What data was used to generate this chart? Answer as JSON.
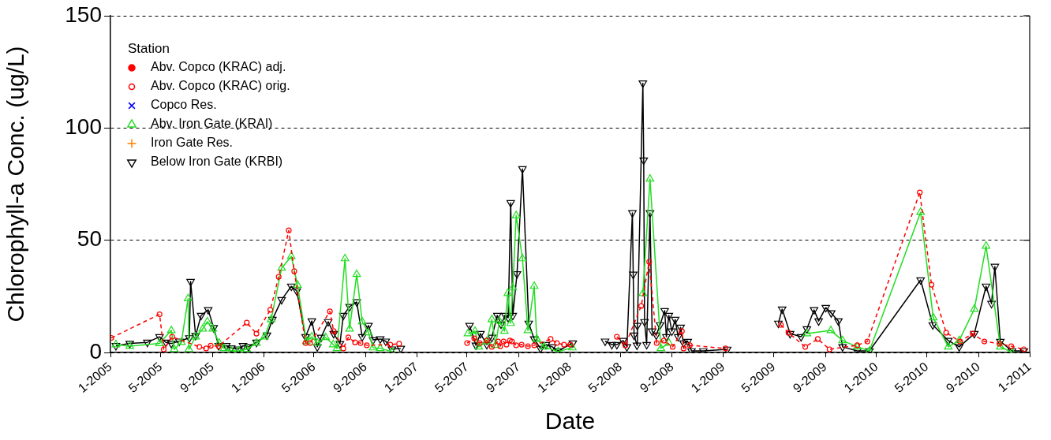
{
  "chart_data": {
    "type": "line",
    "xlabel": "Date",
    "ylabel": "Chlorophyll-a Conc. (ug/L)",
    "legend_title": "Station",
    "legend": "top left",
    "grid": "y",
    "xlim": [
      "2005-01",
      "2011-01"
    ],
    "ylim": [
      0,
      150
    ],
    "yticks": [
      0,
      50,
      100,
      150
    ],
    "xticks": [
      {
        "value": "2005-01",
        "label": "1-2005"
      },
      {
        "value": "2005-05",
        "label": "5-2005"
      },
      {
        "value": "2005-09",
        "label": "9-2005"
      },
      {
        "value": "2006-01",
        "label": "1-2006"
      },
      {
        "value": "2006-05",
        "label": "5-2006"
      },
      {
        "value": "2006-09",
        "label": "9-2006"
      },
      {
        "value": "2007-01",
        "label": "1-2007"
      },
      {
        "value": "2007-05",
        "label": "5-2007"
      },
      {
        "value": "2007-09",
        "label": "9-2007"
      },
      {
        "value": "2008-01",
        "label": "1-2008"
      },
      {
        "value": "2008-05",
        "label": "5-2008"
      },
      {
        "value": "2008-09",
        "label": "9-2008"
      },
      {
        "value": "2009-01",
        "label": "1-2009"
      },
      {
        "value": "2009-05",
        "label": "5-2009"
      },
      {
        "value": "2009-09",
        "label": "9-2009"
      },
      {
        "value": "2010-01",
        "label": "1-2010"
      },
      {
        "value": "2010-05",
        "label": "5-2010"
      },
      {
        "value": "2010-09",
        "label": "9-2010"
      },
      {
        "value": "2011-01",
        "label": "1-2011"
      }
    ],
    "series": [
      {
        "name": "Abv. Copco (KRAC) adj.",
        "color": "#ff0000",
        "marker": "circle"
      },
      {
        "name": "Abv. Copco (KRAC) orig.",
        "color": "#ff0000",
        "marker": "circle_open",
        "line_style": "dashed",
        "x": [
          "2005-01-03",
          "2005-04-28",
          "2005-05-08",
          "2005-05-28",
          "2005-08-01",
          "2005-08-17",
          "2005-08-28",
          "2005-09-16",
          "2005-11-22",
          "2005-12-15",
          "2006-01-17",
          "2006-02-06",
          "2006-03-02",
          "2006-03-15",
          "2006-04-11",
          "2006-04-22",
          "2006-06-08",
          "2006-06-17",
          "2006-07-10",
          "2006-07-22",
          "2006-08-07",
          "2006-08-20",
          "2006-09-04",
          "2006-10-30",
          "2006-11-20",
          "2007-02-15",
          "2007-05-01",
          "2007-05-18",
          "2007-05-31",
          "2007-06-17",
          "2007-06-29",
          "2007-07-14",
          "2007-07-19",
          "2007-07-27",
          "2007-08-03",
          "2007-08-11",
          "2007-08-16",
          "2007-08-26",
          "2007-09-08",
          "2007-09-23",
          "2007-10-08",
          "2007-11-16",
          "2007-12-01",
          "2007-12-18",
          "2008-01-02",
          "2008-02-15",
          "2008-04-22",
          "2008-05-12",
          "2008-06-19",
          "2008-07-08",
          "2008-07-26",
          "2008-08-12",
          "2008-09-02",
          "2008-09-24",
          "2008-09-28",
          "2008-10-13",
          "2009-01-06",
          "2009-03-01",
          "2009-05-18",
          "2009-06-05",
          "2009-07-15",
          "2009-08-14",
          "2009-09-11",
          "2009-11-16",
          "2009-12-10",
          "2010-04-14",
          "2010-05-12",
          "2010-06-16",
          "2010-07-19",
          "2010-08-18",
          "2010-09-15",
          "2010-10-21",
          "2010-11-18",
          "2010-12-18"
        ],
        "values": [
          6.5,
          17,
          1.4,
          7,
          2.5,
          1.8,
          3,
          2.8,
          13.3,
          8.4,
          19,
          33.7,
          54.4,
          36.2,
          4.2,
          4.2,
          18.3,
          9.5,
          1.8,
          6.7,
          4.5,
          4.2,
          3.2,
          3.5,
          3.9,
          null,
          4.2,
          6.3,
          4.2,
          5.3,
          2.5,
          4.9,
          2.8,
          4.9,
          3.5,
          5.3,
          4.9,
          3.2,
          3.5,
          2.8,
          3.2,
          6,
          4.2,
          3.5,
          3.5,
          null,
          7,
          3.2,
          20.7,
          40.4,
          4.2,
          5.3,
          2.5,
          9.5,
          1.8,
          3.2,
          1.8,
          null,
          12.3,
          8.8,
          2.5,
          6,
          1.4,
          3.2,
          4.9,
          71.3,
          30.2,
          8.8,
          4.9,
          8.4,
          4.9,
          3.9,
          2.8,
          1.4
        ]
      },
      {
        "name": "Copco Res.",
        "color": "#0000ff",
        "marker": "cross"
      },
      {
        "name": "Abv. Iron Gate (KRAI)",
        "color": "#22dd22",
        "marker": "triangle",
        "x": [
          "2005-01-14",
          "2005-02-16",
          "2005-04-28",
          "2005-05-26",
          "2005-06-02",
          "2005-06-19",
          "2005-07-05",
          "2005-07-07",
          "2005-07-23",
          "2005-08-09",
          "2005-08-20",
          "2005-09-02",
          "2005-09-17",
          "2005-09-29",
          "2005-10-16",
          "2005-11-02",
          "2005-11-22",
          "2005-12-15",
          "2006-01-03",
          "2006-01-19",
          "2006-02-13",
          "2006-03-08",
          "2006-03-23",
          "2006-04-13",
          "2006-04-26",
          "2006-05-09",
          "2006-05-29",
          "2006-06-16",
          "2006-06-25",
          "2006-07-14",
          "2006-07-25",
          "2006-08-11",
          "2006-08-24",
          "2006-09-08",
          "2006-09-19",
          "2006-10-06",
          "2006-11-03",
          "2007-02-15",
          "2007-05-03",
          "2007-05-20",
          "2007-05-29",
          "2007-06-17",
          "2007-06-29",
          "2007-07-08",
          "2007-07-17",
          "2007-07-29",
          "2007-08-06",
          "2007-08-13",
          "2007-08-18",
          "2007-08-26",
          "2007-09-10",
          "2007-09-23",
          "2007-10-08",
          "2007-10-14",
          "2007-11-01",
          "2007-12-04",
          "2008-01-07",
          "2008-02-15",
          "2008-06-23",
          "2008-07-10",
          "2008-08-05",
          "2008-08-24",
          "2009-03-01",
          "2009-07-19",
          "2009-09-14",
          "2009-10-12",
          "2009-11-16",
          "2009-12-15",
          "2010-04-16",
          "2010-05-16",
          "2010-06-21",
          "2010-07-17",
          "2010-08-22",
          "2010-09-19",
          "2010-10-23",
          "2010-11-20"
        ],
        "values": [
          3.5,
          2.8,
          4,
          9.8,
          1.4,
          4.5,
          24,
          1.4,
          7,
          10.5,
          13.7,
          10.5,
          4.2,
          1.8,
          0.7,
          0.7,
          1.4,
          4.2,
          7,
          14.7,
          37.6,
          42.8,
          30,
          4.9,
          7,
          4.2,
          6.7,
          3.5,
          1.8,
          41.8,
          10.5,
          34.8,
          13.7,
          8.8,
          2.1,
          1.8,
          0.4,
          null,
          8.4,
          9.5,
          2.5,
          4.9,
          14.7,
          3.2,
          14,
          9.5,
          26.3,
          13,
          28.8,
          61,
          41.8,
          9.8,
          29.5,
          6,
          2.5,
          0.4,
          2.1,
          null,
          26.3,
          77.3,
          1.8,
          4.2,
          null,
          8.4,
          9.8,
          5.3,
          2.5,
          0.7,
          62.5,
          15.5,
          2.5,
          5.3,
          19.3,
          47.4,
          2.5,
          0
        ]
      },
      {
        "name": "Iron Gate Res.",
        "color": "#ff8000",
        "marker": "plus"
      },
      {
        "name": "Below Iron Gate (KRBI)",
        "color": "#000000",
        "marker": "triangle_down",
        "x": [
          "2005-01-14",
          "2005-02-16",
          "2005-03-30",
          "2005-04-28",
          "2005-05-13",
          "2005-05-26",
          "2005-06-14",
          "2005-07-08",
          "2005-07-11",
          "2005-07-23",
          "2005-08-05",
          "2005-08-22",
          "2005-09-04",
          "2005-09-16",
          "2005-10-04",
          "2005-10-16",
          "2005-11-02",
          "2005-11-13",
          "2005-11-26",
          "2005-12-15",
          "2006-01-09",
          "2006-01-22",
          "2006-02-13",
          "2006-03-08",
          "2006-03-21",
          "2006-04-11",
          "2006-04-26",
          "2006-05-09",
          "2006-05-18",
          "2006-06-04",
          "2006-06-17",
          "2006-07-02",
          "2006-07-10",
          "2006-07-25",
          "2006-08-11",
          "2006-08-24",
          "2006-09-08",
          "2006-09-19",
          "2006-10-06",
          "2006-10-19",
          "2006-11-03",
          "2006-11-24",
          "2007-02-15",
          "2007-05-07",
          "2007-05-22",
          "2007-06-02",
          "2007-06-17",
          "2007-06-29",
          "2007-07-12",
          "2007-07-21",
          "2007-07-31",
          "2007-08-07",
          "2007-08-13",
          "2007-08-18",
          "2007-08-28",
          "2007-09-10",
          "2007-09-25",
          "2007-10-08",
          "2007-10-23",
          "2007-11-05",
          "2007-11-20",
          "2007-12-04",
          "2008-01-08",
          "2008-02-15",
          "2008-03-25",
          "2008-04-10",
          "2008-04-22",
          "2008-05-07",
          "2008-05-16",
          "2008-05-29",
          "2008-05-31",
          "2008-06-02",
          "2008-06-09",
          "2008-06-10",
          "2008-06-23",
          "2008-06-25",
          "2008-06-27",
          "2008-07-02",
          "2008-07-10",
          "2008-07-15",
          "2008-07-25",
          "2008-08-03",
          "2008-08-14",
          "2008-08-18",
          "2008-08-24",
          "2008-08-31",
          "2008-09-08",
          "2008-09-15",
          "2008-09-21",
          "2008-09-28",
          "2008-10-08",
          "2008-10-17",
          "2008-11-14",
          "2009-01-10",
          "2009-03-01",
          "2009-05-12",
          "2009-05-21",
          "2009-06-09",
          "2009-07-05",
          "2009-07-19",
          "2009-08-05",
          "2009-08-16",
          "2009-09-02",
          "2009-09-15",
          "2009-10-02",
          "2009-10-12",
          "2009-11-16",
          "2009-12-15",
          "2010-04-16",
          "2010-05-15",
          "2010-06-21",
          "2010-07-17",
          "2010-08-22",
          "2010-09-19",
          "2010-10-02",
          "2010-10-10",
          "2010-10-23",
          "2010-11-20",
          "2010-12-18"
        ],
        "values": [
          3,
          4,
          4.5,
          7,
          4.5,
          4,
          5,
          6.5,
          31.6,
          7.5,
          16.5,
          19,
          11,
          3,
          3,
          2,
          1.5,
          3,
          2.5,
          4.5,
          7.7,
          14.7,
          23.5,
          29.5,
          27.4,
          7,
          14,
          2.5,
          6.7,
          13.7,
          8.4,
          3.9,
          16.5,
          20.4,
          22.5,
          7,
          12,
          5.6,
          6,
          5,
          1.5,
          1.8,
          null,
          12,
          3.2,
          8.4,
          3.5,
          6.7,
          16.5,
          12.6,
          16.5,
          15.5,
          66.7,
          16.5,
          35,
          81.8,
          13,
          6,
          1.8,
          3.5,
          2.5,
          0.7,
          4.2,
          null,
          5,
          3.5,
          3.5,
          5.3,
          2.5,
          62.2,
          34.8,
          7.7,
          3.2,
          12,
          120,
          85.7,
          13.7,
          3.5,
          62.2,
          9.5,
          7.7,
          12.3,
          18.6,
          7,
          16.5,
          9.5,
          14.7,
          7,
          11.2,
          4.2,
          4.9,
          0.7,
          0.7,
          1.4,
          null,
          13,
          19.3,
          8.4,
          7,
          10.5,
          19,
          14,
          20,
          17.6,
          14,
          2.5,
          0.7,
          0.7,
          32.3,
          12.3,
          5.3,
          2.5,
          8.4,
          29.5,
          21.8,
          38.3,
          4.9,
          0.7,
          0.7
        ]
      }
    ]
  }
}
